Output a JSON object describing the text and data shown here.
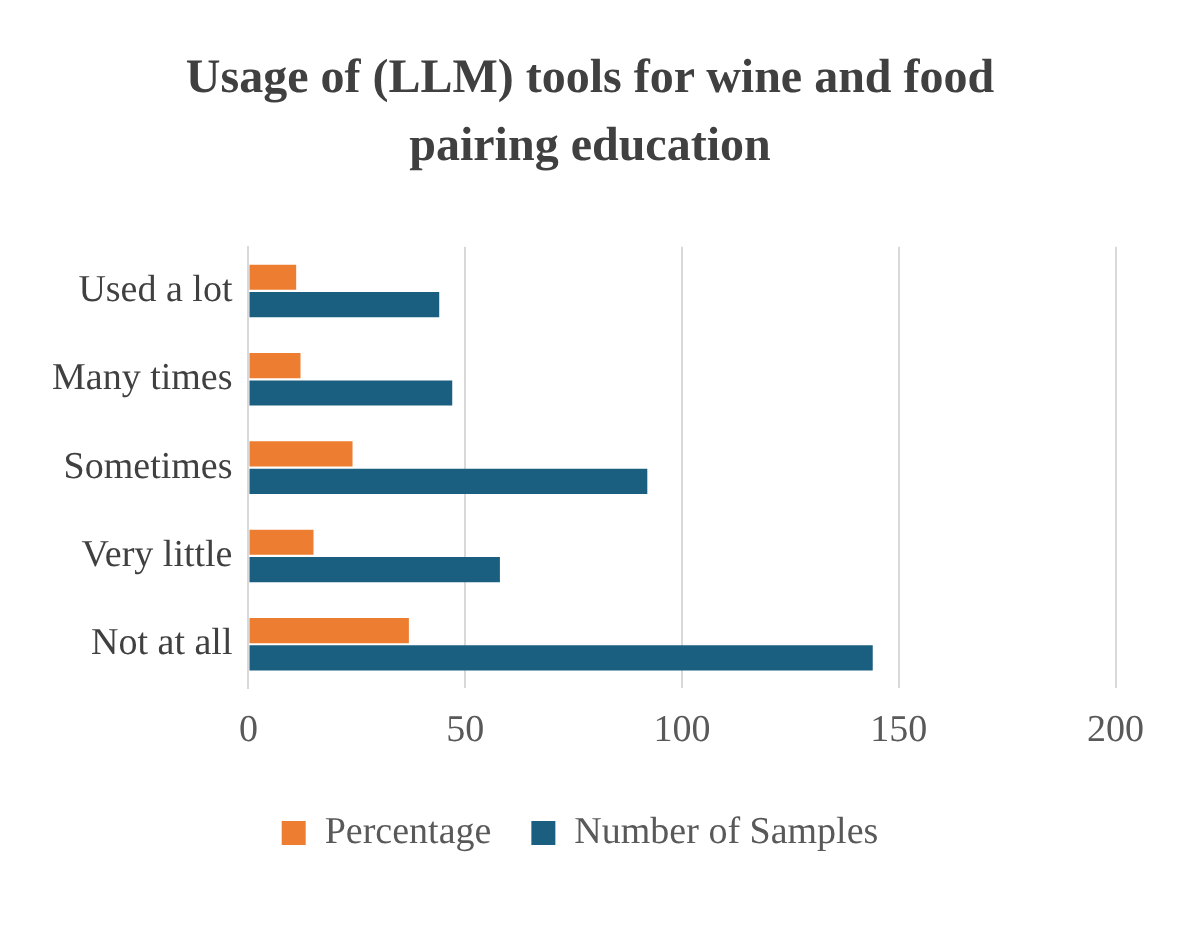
{
  "chart_data": {
    "type": "bar",
    "orientation": "horizontal",
    "title": "Usage of (LLM) tools for wine and food pairing education",
    "categories": [
      "Used a lot",
      "Many times",
      "Sometimes",
      "Very little",
      "Not at all"
    ],
    "series": [
      {
        "name": "Percentage",
        "color": "#ed7d31",
        "values": [
          11,
          12,
          24,
          15,
          37
        ]
      },
      {
        "name": "Number of Samples",
        "color": "#1a5f80",
        "values": [
          44,
          47,
          92,
          58,
          144
        ]
      }
    ],
    "xlim": [
      0,
      200
    ],
    "xticks": [
      0,
      50,
      100,
      150,
      200
    ],
    "grid": "x",
    "legend": "bottom"
  }
}
